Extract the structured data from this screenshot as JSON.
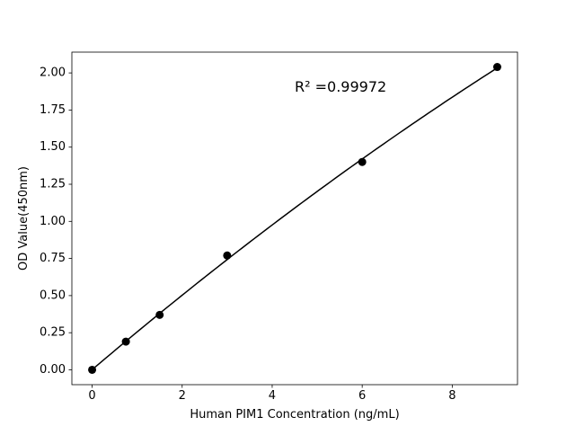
{
  "chart_data": {
    "type": "scatter",
    "title": "",
    "xlabel": "Human PIM1 Concentration (ng/mL)",
    "ylabel": "OD Value(450nm)",
    "x": [
      0,
      0.75,
      1.5,
      3,
      6,
      9
    ],
    "y": [
      0.0,
      0.19,
      0.37,
      0.77,
      1.4,
      2.04
    ],
    "fit": "quadratic",
    "annotation": {
      "text": "R² =0.99972",
      "x": 4.5,
      "y": 1.9
    },
    "xlim": [
      -0.45,
      9.45
    ],
    "ylim": [
      -0.1,
      2.14
    ],
    "xticks": [
      0,
      2,
      4,
      6,
      8
    ],
    "yticks": [
      0.0,
      0.25,
      0.5,
      0.75,
      1.0,
      1.25,
      1.5,
      1.75,
      2.0
    ],
    "ytick_decimals": 2,
    "grid": false,
    "legend": null,
    "marker_color": "#000000",
    "line_color": "#000000",
    "background": "#ffffff"
  }
}
